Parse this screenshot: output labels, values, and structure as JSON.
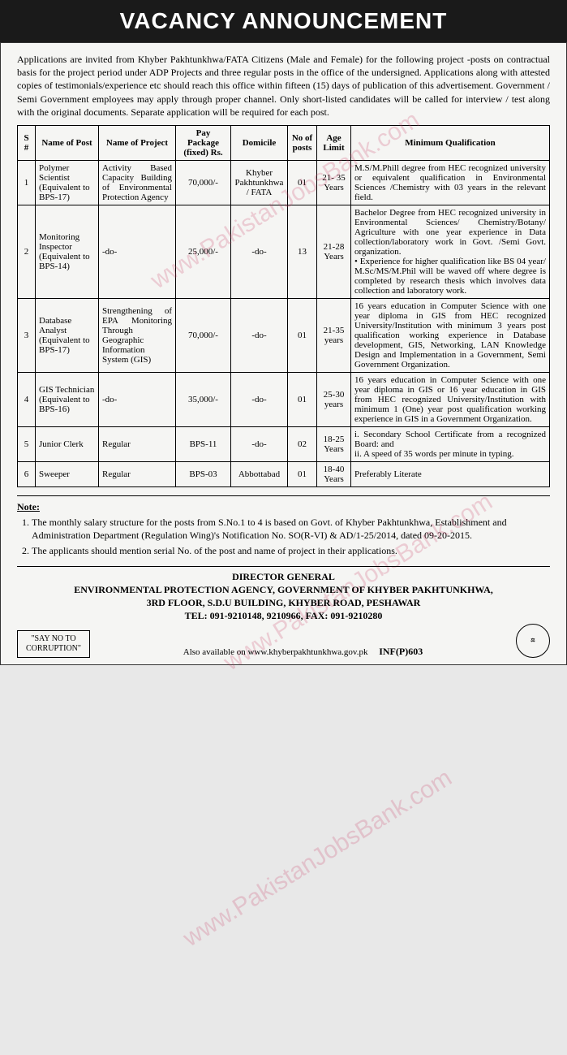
{
  "header": {
    "title": "VACANCY ANNOUNCEMENT"
  },
  "intro": "Applications are invited from Khyber Pakhtunkhwa/FATA Citizens (Male and Female) for the following project -posts on contractual basis for the project period under ADP Projects and three regular posts in the office of the undersigned. Applications along with attested copies of testimonials/experience etc should reach this office within fifteen (15) days of publication of this advertisement. Government / Semi Government employees may apply through proper channel. Only short-listed candidates will be called for interview / test along with the original documents. Separate application will be required for each post.",
  "table": {
    "columns": [
      "S #",
      "Name of Post",
      "Name of Project",
      "Pay Package (fixed) Rs.",
      "Domicile",
      "No of posts",
      "Age Limit",
      "Minimum Qualification"
    ],
    "rows": [
      {
        "sn": "1",
        "post": "Polymer Scientist (Equivalent to BPS-17)",
        "project": "Activity Based Capacity Building of Environmental Protection Agency",
        "pay": "70,000/-",
        "domicile": "Khyber Pakhtunkhwa / FATA",
        "num": "01",
        "age": "21- 35 Years",
        "qual": "M.S/M.Phill degree from HEC recognized university or equivalent qualification in Environmental Sciences /Chemistry with 03 years in the relevant field."
      },
      {
        "sn": "2",
        "post": "Monitoring Inspector (Equivalent to BPS-14)",
        "project": "-do-",
        "pay": "25,000/-",
        "domicile": "-do-",
        "num": "13",
        "age": "21-28 Years",
        "qual": "Bachelor Degree from HEC recognized university in Environmental Sciences/ Chemistry/Botany/ Agriculture with one year experience in Data collection/laboratory work in Govt. /Semi Govt. organization.\n• Experience for higher qualification like BS 04 year/ M.Sc/MS/M.Phil will be waved off where degree is completed by research thesis which involves data collection and laboratory work."
      },
      {
        "sn": "3",
        "post": "Database Analyst (Equivalent to BPS-17)",
        "project": "Strengthening of EPA Monitoring Through Geographic Information System (GIS)",
        "pay": "70,000/-",
        "domicile": "-do-",
        "num": "01",
        "age": "21-35 years",
        "qual": "16 years education in Computer Science with one year diploma in GIS from HEC recognized University/Institution with minimum 3 years post qualification working experience in Database development, GIS, Networking, LAN Knowledge Design and Implementation in a Government, Semi Government Organization."
      },
      {
        "sn": "4",
        "post": "GIS Technician (Equivalent to BPS-16)",
        "project": "-do-",
        "pay": "35,000/-",
        "domicile": "-do-",
        "num": "01",
        "age": "25-30 years",
        "qual": "16 years education in Computer Science with one year diploma in GIS or 16 year education in GIS from HEC recognized University/Institution with minimum 1 (One) year post qualification working experience in GIS in a Government Organization."
      },
      {
        "sn": "5",
        "post": "Junior Clerk",
        "project": "Regular",
        "pay": "BPS-11",
        "domicile": "-do-",
        "num": "02",
        "age": "18-25 Years",
        "qual": "i. Secondary School Certificate from a recognized Board: and\nii. A speed of 35 words per minute in typing."
      },
      {
        "sn": "6",
        "post": "Sweeper",
        "project": "Regular",
        "pay": "BPS-03",
        "domicile": "Abbottabad",
        "num": "01",
        "age": "18-40 Years",
        "qual": "Preferably Literate"
      }
    ]
  },
  "notes": {
    "title": "Note:",
    "items": [
      "The monthly salary structure for the posts from S.No.1 to 4 is based on Govt. of Khyber Pakhtunkhwa, Establishment and Administration Department (Regulation Wing)'s Notification No. SO(R-VI) & AD/1-25/2014, dated 09-20-2015.",
      "The applicants should mention serial No. of the post and name of project in their applications."
    ]
  },
  "footer": {
    "line1": "DIRECTOR GENERAL",
    "line2": "ENVIRONMENTAL PROTECTION AGENCY, GOVERNMENT OF KHYBER PAKHTUNKHWA,",
    "line3": "3RD FLOOR, S.D.U BUILDING, KHYBER ROAD, PESHAWAR",
    "line4": "TEL: 091-9210148, 9210966, FAX: 091-9210280",
    "available": "Also available on www.khyberpakhtunkhwa.gov.pk",
    "inf": "INF(P)603",
    "corruption": "\"SAY NO TO CORRUPTION\""
  },
  "watermark": "www.PakistanJobsBank.com"
}
